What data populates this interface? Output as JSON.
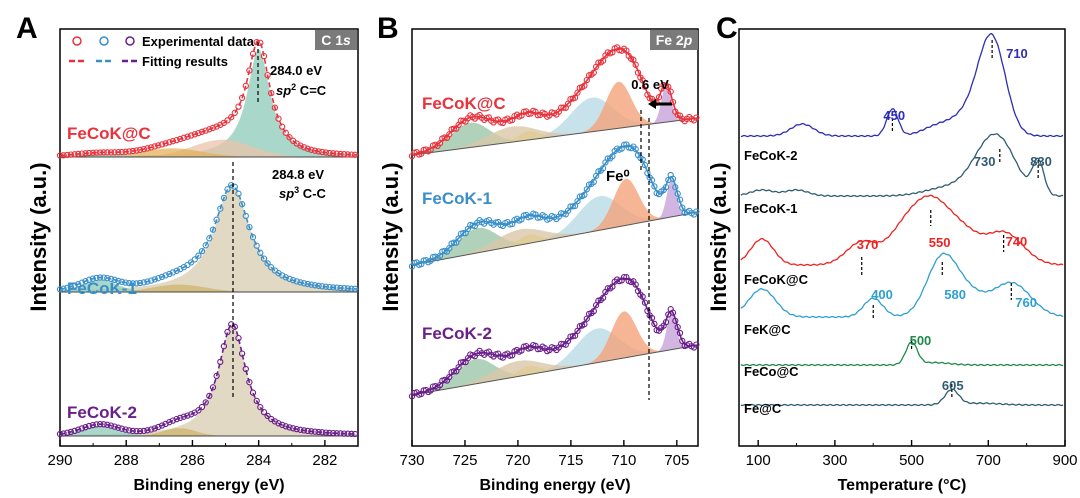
{
  "chart_data": [
    {
      "panel": "A",
      "type": "line",
      "badge": "C 1s",
      "xlabel": "Binding energy (eV)",
      "ylabel": "Intensity (a.u.)",
      "xlim": [
        290,
        281
      ],
      "xticks": [
        "290",
        "288",
        "286",
        "284",
        "282"
      ],
      "legend": {
        "marker_label": "Experimental data",
        "line_label": "Fitting results"
      },
      "series": [
        {
          "name": "FeCoK@C",
          "color": "#e8323c",
          "peak_ev": 284.0,
          "annotation": [
            "284.0 eV",
            "sp² C=C"
          ]
        },
        {
          "name": "FeCoK-1",
          "color": "#3a8fc9",
          "peak_ev": 284.8,
          "annotation": [
            "284.8 eV",
            "sp³ C-C"
          ]
        },
        {
          "name": "FeCoK-2",
          "color": "#6a1f8a",
          "peak_ev": 284.8
        }
      ]
    },
    {
      "panel": "B",
      "type": "line",
      "badge": "Fe 2p",
      "xlabel": "Binding energy (eV)",
      "ylabel": "Intensity (a.u.)",
      "xlim": [
        730,
        703
      ],
      "xticks": [
        "730",
        "725",
        "720",
        "715",
        "710",
        "705"
      ],
      "shift_label": "0.6 eV",
      "fe0_label": "Fe⁰",
      "series": [
        {
          "name": "FeCoK@C",
          "color": "#e8323c",
          "peak_ev": 710.5
        },
        {
          "name": "FeCoK-1",
          "color": "#3a8fc9",
          "peak_ev": 709.8
        },
        {
          "name": "FeCoK-2",
          "color": "#6a1f8a",
          "peak_ev": 710.0
        }
      ]
    },
    {
      "panel": "C",
      "type": "line",
      "xlabel": "Temperature (°C)",
      "ylabel": "Intensity (a.u.)",
      "xlim": [
        50,
        900
      ],
      "xticks": [
        "100",
        "300",
        "500",
        "700",
        "900"
      ],
      "series": [
        {
          "name": "FeCoK-2",
          "color": "#2d2db5",
          "peaks": [
            "450",
            "710"
          ]
        },
        {
          "name": "FeCoK-1",
          "color": "#2f5b73",
          "peaks": [
            "730",
            "830"
          ]
        },
        {
          "name": "FeCoK@C",
          "color": "#ee2222",
          "peaks": [
            "370",
            "550",
            "740"
          ]
        },
        {
          "name": "FeK@C",
          "color": "#2f9fd0",
          "peaks": [
            "400",
            "580",
            "760"
          ]
        },
        {
          "name": "FeCo@C",
          "color": "#1f8a4a",
          "peaks": [
            "500"
          ]
        },
        {
          "name": "Fe@C",
          "color": "#2f5b73",
          "peaks": [
            "605"
          ]
        }
      ]
    }
  ]
}
